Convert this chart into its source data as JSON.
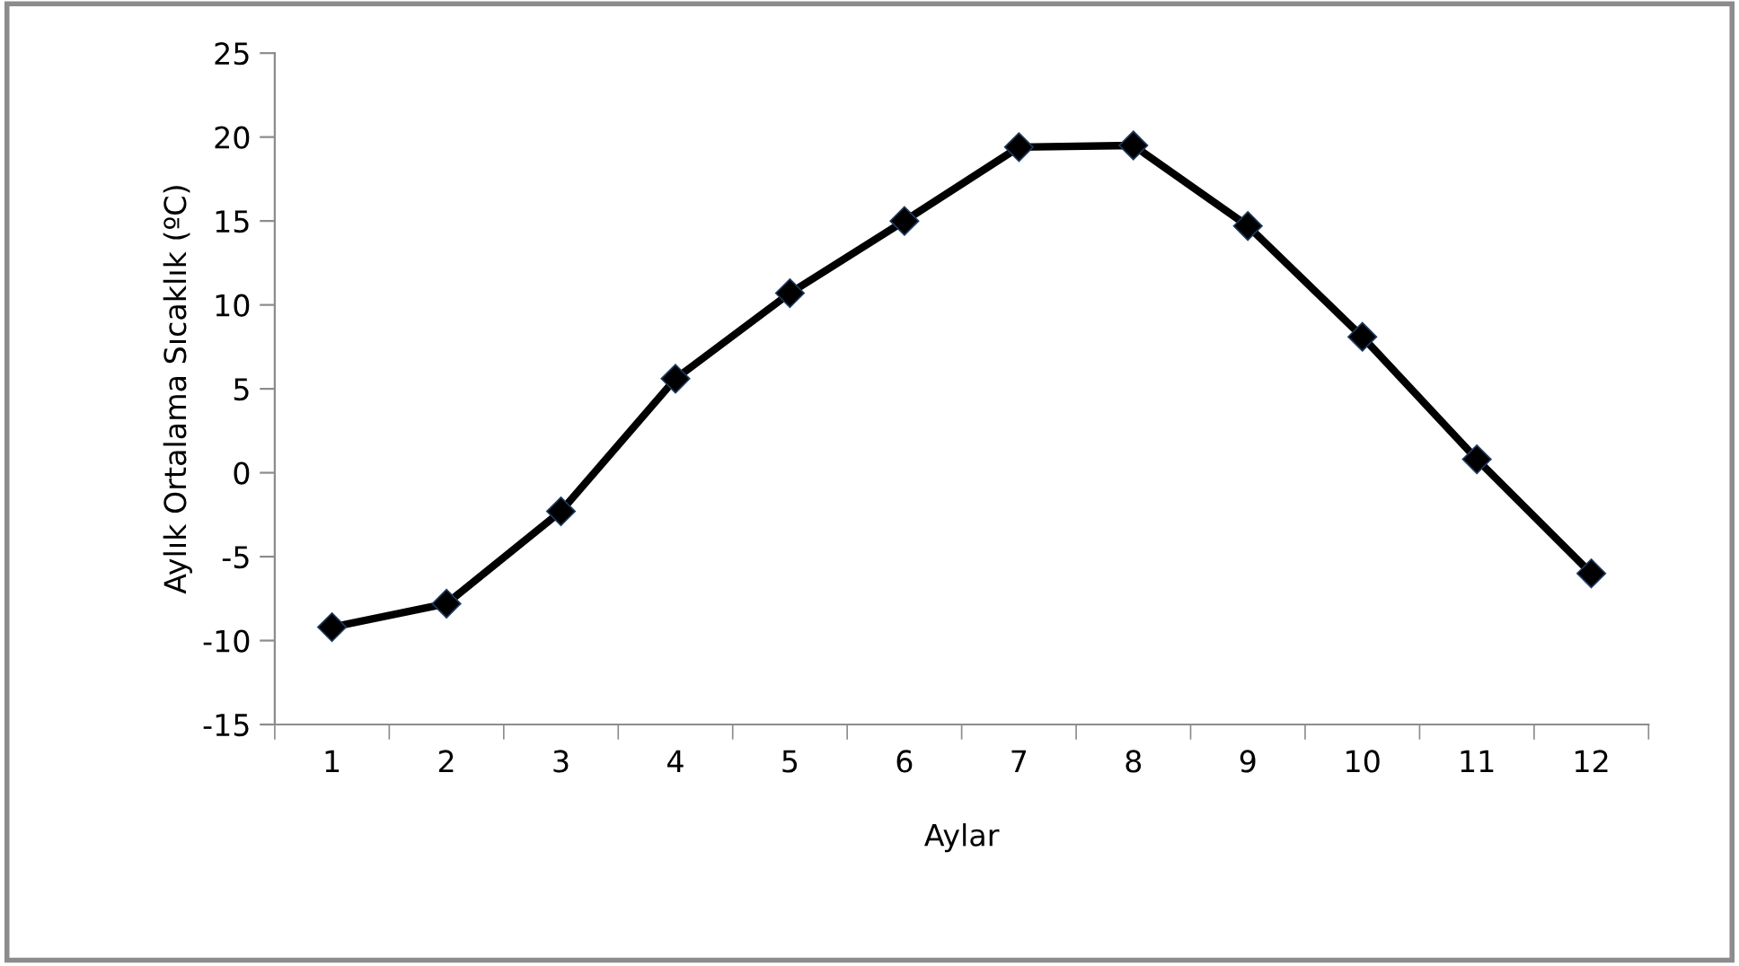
{
  "chart_data": {
    "type": "line",
    "xlabel": "Aylar",
    "ylabel": "Aylık Ortalama Sıcaklık (ºC)",
    "categories": [
      "1",
      "2",
      "3",
      "4",
      "5",
      "6",
      "7",
      "8",
      "9",
      "10",
      "11",
      "12"
    ],
    "series": [
      {
        "color": "#000000",
        "values": [
          -9.2,
          -7.8,
          -2.3,
          5.6,
          10.7,
          15.0,
          19.4,
          19.5,
          14.7,
          8.1,
          0.8,
          -6.0
        ]
      }
    ],
    "ylim": [
      -15,
      25
    ],
    "yticks": [
      -15,
      -10,
      -5,
      0,
      5,
      10,
      15,
      20,
      25
    ],
    "grid": false,
    "marker": "diamond",
    "line_style": "solid"
  }
}
